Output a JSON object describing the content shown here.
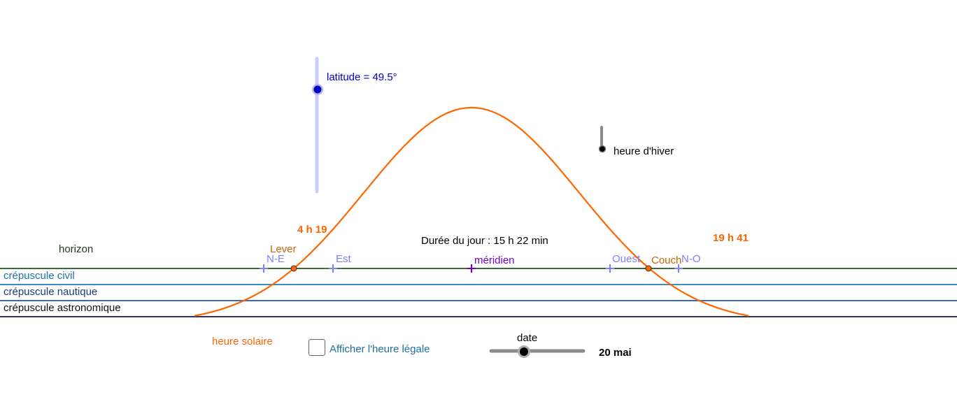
{
  "colors": {
    "curve": "#ff6600",
    "horizon_line": "#3a6b3a",
    "civil_line": "#3f8cc0",
    "nautical_line": "#3a66c4",
    "astronomical_line": "#333355",
    "cardinal": "#7f7fff",
    "meridian_text": "#7700cc",
    "latitude": "#0000cc",
    "slider_track": "#ccccff",
    "time_orange": "#ff6600",
    "lever_brown": "#cc6600",
    "twilight_blue": "#1f6fa0",
    "twilight_dark": "#1a3a7a"
  },
  "labels": {
    "horizon": "horizon",
    "civil_twilight": "crépuscule civil",
    "nautical_twilight": "crépuscule nautique",
    "astronomical_twilight": "crépuscule astronomique",
    "solar_time": "heure solaire",
    "show_legal_time": "Afficher l'heure légale",
    "date_title": "date",
    "date_value": "20 mai",
    "winter_time": "heure d'hiver",
    "latitude": "latitude = 49.5°",
    "day_length": "Durée du jour : 15 h 22 min",
    "sunrise_time": "4 h 19",
    "sunset_time": "19 h 41",
    "sunrise": "Lever",
    "sunset": "Couch",
    "meridian": "méridien",
    "north_east": "N-E",
    "east": "Est",
    "west": "Ouest",
    "north_west": "N-O"
  },
  "controls": {
    "latitude_level": 0.75,
    "date_level": 0.37,
    "legal_time_checked": false,
    "winter_time_on": false
  }
}
